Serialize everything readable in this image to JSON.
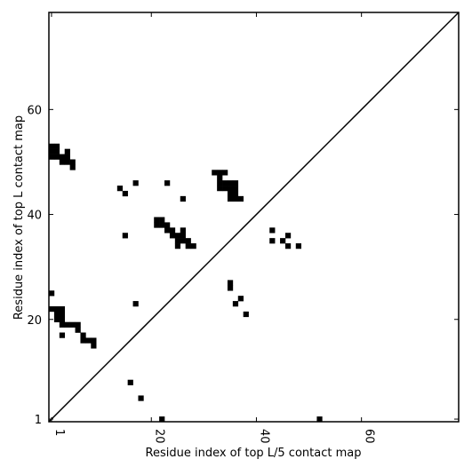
{
  "chart_data": {
    "type": "scatter",
    "marker": "square",
    "color": "#000000",
    "xlabel": "Residue index of top L/5 contact map",
    "ylabel": "Residue index of top L contact map",
    "xlim": [
      0.5,
      78.5
    ],
    "ylim": [
      0.5,
      78.5
    ],
    "xticks": [
      1,
      20,
      40,
      60
    ],
    "yticks": [
      1,
      20,
      40,
      60
    ],
    "diagonal": true,
    "x": [
      1,
      1,
      1,
      2,
      2,
      2,
      3,
      3,
      4,
      4,
      4,
      5,
      5,
      14,
      15,
      17,
      15,
      23,
      26,
      21,
      21,
      22,
      22,
      23,
      23,
      24,
      24,
      25,
      25,
      26,
      26,
      26,
      27,
      27,
      28,
      25,
      32,
      33,
      34,
      33,
      33,
      34,
      35,
      36,
      33,
      34,
      35,
      36,
      35,
      36,
      35,
      36,
      37,
      1,
      1,
      2,
      3,
      2,
      3,
      2,
      3,
      3,
      4,
      5,
      6,
      6,
      7,
      7,
      8,
      9,
      9,
      3,
      17,
      43,
      43,
      45,
      46,
      46,
      48,
      35,
      35,
      37,
      36,
      38,
      16,
      18,
      22,
      52
    ],
    "values": [
      51,
      52,
      53,
      51,
      52,
      53,
      51,
      50,
      50,
      51,
      52,
      50,
      49,
      45,
      44,
      46,
      36,
      46,
      43,
      38,
      39,
      38,
      39,
      37,
      38,
      36,
      37,
      36,
      35,
      35,
      36,
      37,
      35,
      34,
      34,
      34,
      48,
      48,
      48,
      47,
      46,
      46,
      46,
      46,
      45,
      45,
      45,
      45,
      44,
      44,
      43,
      43,
      43,
      25,
      22,
      22,
      22,
      21,
      21,
      20,
      20,
      19,
      19,
      19,
      19,
      18,
      17,
      16,
      16,
      16,
      15,
      17,
      23,
      37,
      35,
      35,
      36,
      34,
      34,
      27,
      26,
      24,
      23,
      21,
      8,
      5,
      1,
      1
    ]
  }
}
